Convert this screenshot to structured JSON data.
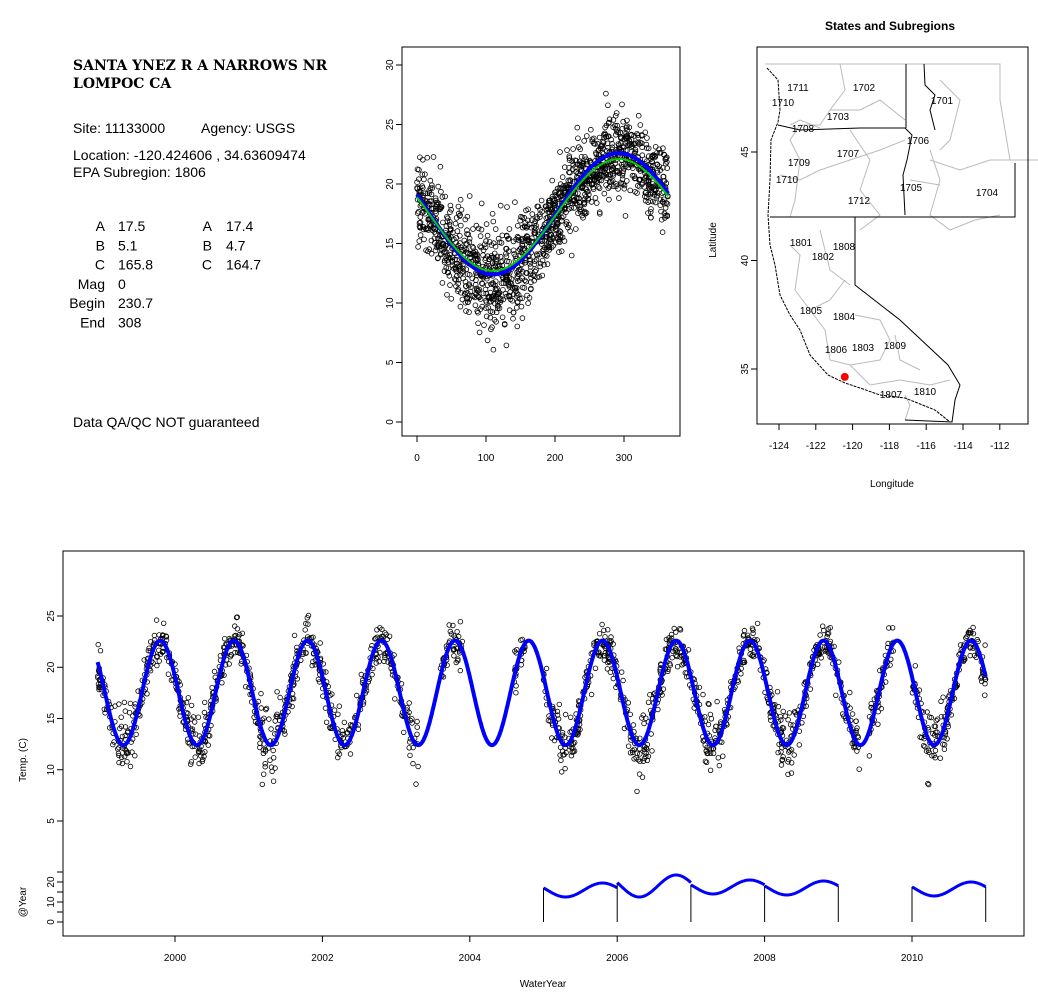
{
  "info": {
    "title_line1": "SANTA YNEZ R A NARROWS NR",
    "title_line2": "LOMPOC CA",
    "site": "Site: 11133000",
    "agency": "Agency: USGS",
    "location": "Location: -120.424606 , 34.63609474",
    "subregion": "EPA Subregion: 1806",
    "params_left": [
      {
        "label": "A",
        "value": "17.5"
      },
      {
        "label": "B",
        "value": "5.1"
      },
      {
        "label": "C",
        "value": "165.8"
      },
      {
        "label": "Mag",
        "value": "0"
      },
      {
        "label": "Begin",
        "value": "230.7"
      },
      {
        "label": "End",
        "value": "308"
      }
    ],
    "params_right": [
      {
        "label": "A",
        "value": "17.4"
      },
      {
        "label": "B",
        "value": "4.7"
      },
      {
        "label": "C",
        "value": "164.7"
      }
    ],
    "disclaimer": "Data QA/QC NOT guaranteed",
    "disclaimer_color": "#b22222"
  },
  "chart_data": [
    {
      "type": "scatter",
      "name": "day-of-year",
      "xlabel": "",
      "ylabel": "",
      "xlim": [
        0,
        366
      ],
      "ylim": [
        0,
        30
      ],
      "xticks": [
        "0",
        "100",
        "200",
        "300"
      ],
      "yticks": [
        "0",
        "5",
        "10",
        "15",
        "20",
        "25",
        "30"
      ],
      "fits": [
        {
          "name": "fit-1",
          "A": 17.5,
          "B": 5.1,
          "color": "#0000ff"
        },
        {
          "name": "fit-2",
          "A": 17.4,
          "B": 4.7,
          "color": "#00cc00"
        }
      ],
      "trough_day": 110,
      "points_note_seed": 7,
      "noise_sd": 1.6
    },
    {
      "type": "map",
      "title": "States and Subregions",
      "xlabel": "Longitude",
      "ylabel": "Latitude",
      "xticks": [
        "-124",
        "-122",
        "-120",
        "-118",
        "-116",
        "-114",
        "-112"
      ],
      "yticks": [
        "35",
        "40",
        "45"
      ],
      "site": {
        "lon": -120.424606,
        "lat": 34.63609474,
        "color": "#ff0000"
      },
      "subregion_labels": [
        "1711",
        "1702",
        "1701",
        "1710",
        "1703",
        "1708",
        "1706",
        "1707",
        "1709",
        "1710",
        "1705",
        "1704",
        "1712",
        "1801",
        "1808",
        "1802",
        "1805",
        "1804",
        "1803",
        "1809",
        "1806",
        "1807",
        "1810"
      ]
    },
    {
      "type": "line",
      "name": "time-series",
      "xlabel": "WaterYear",
      "ylabel": "Temp. (C)",
      "xlim": [
        1998.5,
        2011.5
      ],
      "ylim": [
        0,
        30
      ],
      "xticks": [
        "2000",
        "2002",
        "2004",
        "2006",
        "2008",
        "2010"
      ],
      "yticks": [
        "5",
        "10",
        "15",
        "20",
        "25"
      ],
      "fit": {
        "A": 17.5,
        "B": 5.1,
        "color": "#0000ff",
        "start": 1998.95,
        "end": 2011.0
      },
      "observed_periods": [
        [
          1998.95,
          2003.3
        ],
        [
          2003.6,
          2003.9
        ],
        [
          2004.6,
          2004.75
        ],
        [
          2005.0,
          2007.95
        ],
        [
          2007.98,
          2009.3
        ],
        [
          2009.4,
          2009.75
        ],
        [
          2010.0,
          2011.0
        ]
      ],
      "year_panel": {
        "ylabel": "@Year",
        "yticks": [
          "0",
          "10",
          "20"
        ],
        "years": [
          2005,
          2006,
          2007,
          2008,
          2010
        ],
        "year_offsets": [
          -1.5,
          0.5,
          0,
          -0.5,
          -1
        ],
        "amplitude": 3.5,
        "boundaries": [
          2005,
          2006,
          2007,
          2008,
          2009,
          2010,
          2011
        ]
      }
    }
  ]
}
